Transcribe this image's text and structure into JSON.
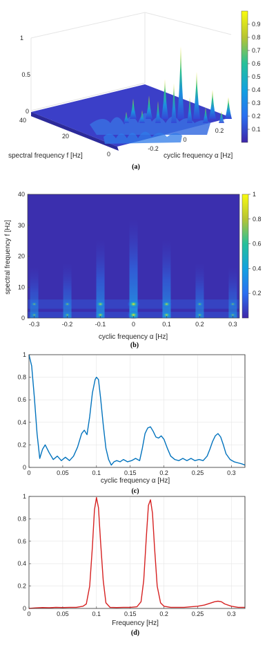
{
  "chart_data": [
    {
      "id": "a",
      "type": "surface",
      "caption": "(a)",
      "xlabel": "cyclic frequency α [Hz]",
      "ylabel": "spectral frequency f [Hz]",
      "x_ticks": [
        "-0.2",
        "0",
        "0.2"
      ],
      "y_ticks": [
        "40",
        "20",
        "0"
      ],
      "z_ticks": [
        "0",
        "0.5",
        "1"
      ],
      "colorbar_ticks": [
        "0.1",
        "0.2",
        "0.3",
        "0.4",
        "0.5",
        "0.6",
        "0.7",
        "0.8",
        "0.9"
      ],
      "peaks": [
        {
          "alpha": -0.3,
          "f": 1,
          "z": 0.28
        },
        {
          "alpha": -0.2,
          "f": 1,
          "z": 0.32
        },
        {
          "alpha": -0.1,
          "f": 1,
          "z": 0.55
        },
        {
          "alpha": 0.0,
          "f": 1,
          "z": 1.0
        },
        {
          "alpha": 0.1,
          "f": 1,
          "z": 0.65
        },
        {
          "alpha": 0.2,
          "f": 1,
          "z": 0.4
        },
        {
          "alpha": 0.3,
          "f": 1,
          "z": 0.3
        }
      ],
      "zlim": [
        0,
        1
      ]
    },
    {
      "id": "b",
      "type": "heatmap",
      "caption": "(b)",
      "xlabel": "cyclic frequency α [Hz]",
      "ylabel": "spectral frequency f [Hz]",
      "x_ticks": [
        "-0.3",
        "-0.2",
        "-0.1",
        "0",
        "0.1",
        "0.2",
        "0.3"
      ],
      "y_ticks": [
        "0",
        "10",
        "20",
        "30",
        "40"
      ],
      "colorbar_ticks": [
        "0.2",
        "0.4",
        "0.6",
        "0.8",
        "1"
      ],
      "xlim": [
        -0.32,
        0.32
      ],
      "ylim": [
        0,
        40
      ],
      "columns": [
        {
          "alpha": -0.3,
          "weight": 0.3
        },
        {
          "alpha": -0.2,
          "weight": 0.35
        },
        {
          "alpha": -0.1,
          "weight": 0.7
        },
        {
          "alpha": 0.0,
          "weight": 1.0
        },
        {
          "alpha": 0.1,
          "weight": 0.7
        },
        {
          "alpha": 0.2,
          "weight": 0.35
        },
        {
          "alpha": 0.3,
          "weight": 0.3
        }
      ],
      "rows_f": [
        1,
        4.5
      ]
    },
    {
      "id": "c",
      "type": "line",
      "caption": "(c)",
      "xlabel": "cyclic frequency α [Hz]",
      "ylabel": "",
      "color": "#0072BD",
      "xlim": [
        0,
        0.32
      ],
      "ylim": [
        0,
        1
      ],
      "x_ticks": [
        "0",
        "0.05",
        "0.1",
        "0.15",
        "0.2",
        "0.25",
        "0.3"
      ],
      "y_ticks": [
        "0",
        "0.2",
        "0.4",
        "0.6",
        "0.8",
        "1"
      ],
      "x": [
        0,
        0.004,
        0.008,
        0.012,
        0.016,
        0.02,
        0.024,
        0.03,
        0.036,
        0.042,
        0.048,
        0.054,
        0.06,
        0.066,
        0.072,
        0.078,
        0.082,
        0.086,
        0.09,
        0.094,
        0.098,
        0.1,
        0.103,
        0.106,
        0.11,
        0.114,
        0.118,
        0.122,
        0.126,
        0.13,
        0.135,
        0.14,
        0.146,
        0.152,
        0.158,
        0.164,
        0.168,
        0.172,
        0.176,
        0.18,
        0.184,
        0.188,
        0.192,
        0.196,
        0.2,
        0.205,
        0.21,
        0.216,
        0.222,
        0.228,
        0.234,
        0.24,
        0.246,
        0.252,
        0.258,
        0.264,
        0.268,
        0.272,
        0.276,
        0.28,
        0.284,
        0.288,
        0.292,
        0.298,
        0.304,
        0.31,
        0.316,
        0.32
      ],
      "y": [
        1.0,
        0.9,
        0.62,
        0.3,
        0.08,
        0.16,
        0.2,
        0.13,
        0.07,
        0.1,
        0.06,
        0.09,
        0.06,
        0.1,
        0.18,
        0.3,
        0.33,
        0.29,
        0.45,
        0.66,
        0.78,
        0.8,
        0.78,
        0.62,
        0.38,
        0.17,
        0.07,
        0.02,
        0.05,
        0.06,
        0.05,
        0.07,
        0.05,
        0.06,
        0.08,
        0.06,
        0.17,
        0.3,
        0.35,
        0.36,
        0.32,
        0.27,
        0.26,
        0.28,
        0.25,
        0.17,
        0.1,
        0.07,
        0.06,
        0.08,
        0.06,
        0.08,
        0.06,
        0.07,
        0.06,
        0.1,
        0.16,
        0.23,
        0.28,
        0.3,
        0.27,
        0.2,
        0.12,
        0.07,
        0.05,
        0.04,
        0.03,
        0.02
      ]
    },
    {
      "id": "d",
      "type": "line",
      "caption": "(d)",
      "xlabel": "Frequency [Hz]",
      "ylabel": "",
      "color": "#D62020",
      "xlim": [
        0,
        0.32
      ],
      "ylim": [
        0,
        1
      ],
      "x_ticks": [
        "0",
        "0.05",
        "0.1",
        "0.15",
        "0.2",
        "0.25",
        "0.3"
      ],
      "y_ticks": [
        "0",
        "0.2",
        "0.4",
        "0.6",
        "0.8",
        "1"
      ],
      "x": [
        0,
        0.01,
        0.02,
        0.03,
        0.04,
        0.05,
        0.06,
        0.07,
        0.08,
        0.085,
        0.09,
        0.094,
        0.097,
        0.1,
        0.103,
        0.106,
        0.11,
        0.114,
        0.12,
        0.13,
        0.14,
        0.15,
        0.16,
        0.166,
        0.17,
        0.174,
        0.177,
        0.18,
        0.183,
        0.186,
        0.19,
        0.195,
        0.2,
        0.21,
        0.22,
        0.23,
        0.24,
        0.25,
        0.26,
        0.27,
        0.275,
        0.28,
        0.285,
        0.29,
        0.3,
        0.31,
        0.32
      ],
      "y": [
        0,
        0.005,
        0.008,
        0.006,
        0.01,
        0.008,
        0.01,
        0.01,
        0.02,
        0.04,
        0.2,
        0.55,
        0.88,
        0.99,
        0.9,
        0.6,
        0.25,
        0.05,
        0.01,
        0.008,
        0.01,
        0.01,
        0.015,
        0.06,
        0.25,
        0.65,
        0.92,
        0.97,
        0.85,
        0.55,
        0.2,
        0.05,
        0.02,
        0.01,
        0.01,
        0.01,
        0.015,
        0.02,
        0.03,
        0.05,
        0.06,
        0.065,
        0.06,
        0.04,
        0.02,
        0.01,
        0.01
      ]
    }
  ]
}
